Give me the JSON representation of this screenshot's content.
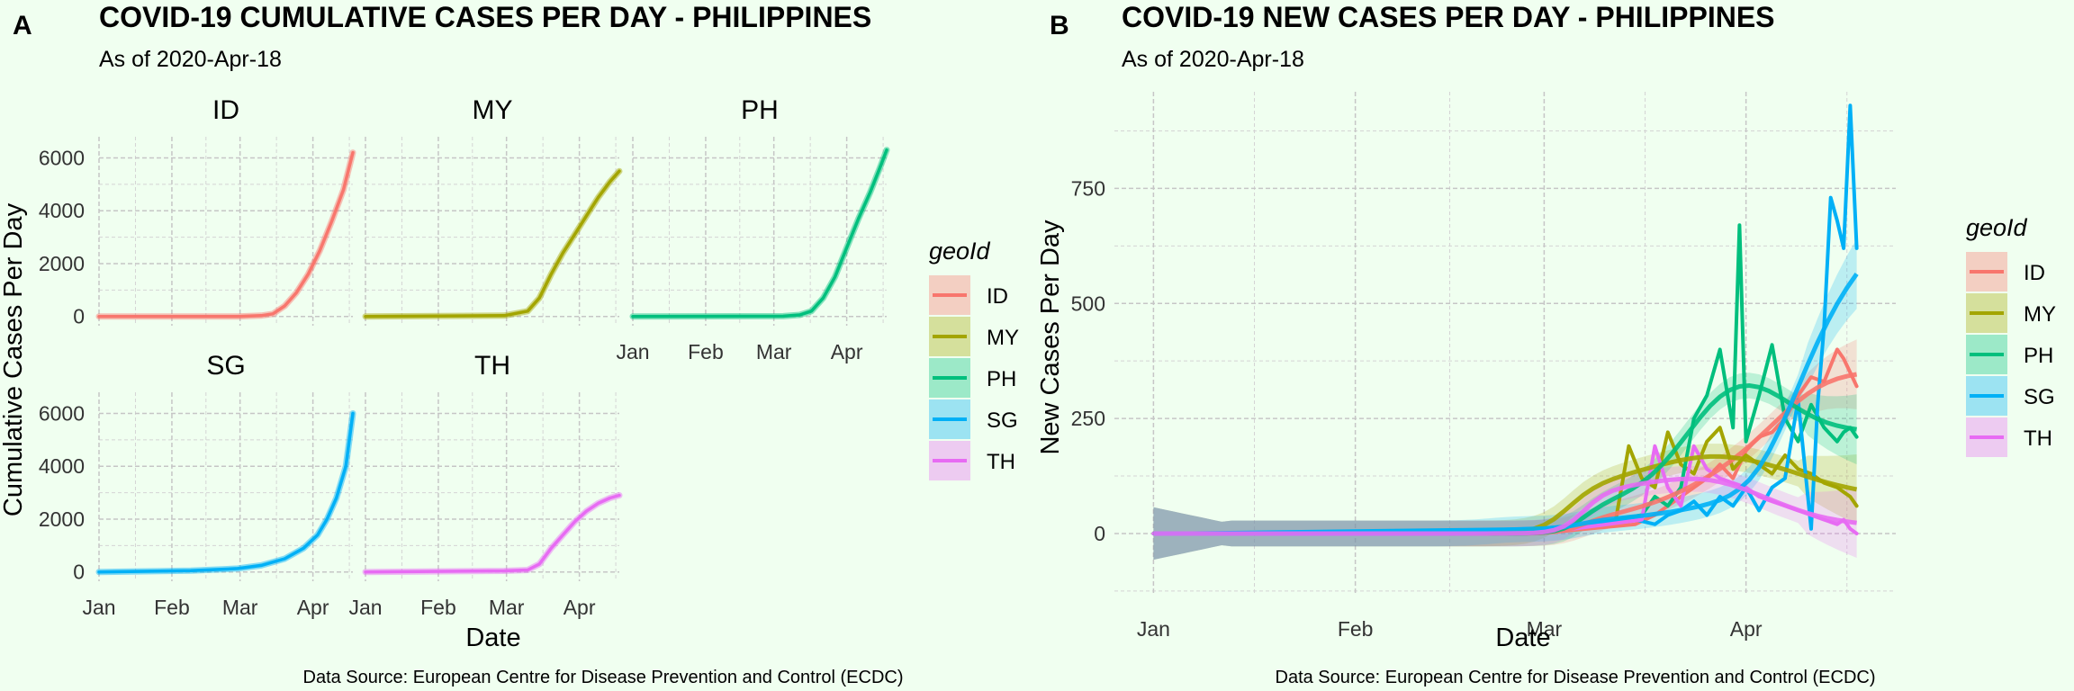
{
  "panel_a": {
    "tag": "A",
    "title": "COVID-19 CUMULATIVE CASES PER DAY - PHILIPPINES",
    "subtitle": "As of 2020-Apr-18",
    "source": "Data Source: European Centre for Disease Prevention and Control (ECDC)"
  },
  "panel_b": {
    "tag": "B",
    "title": "COVID-19 NEW CASES PER DAY - PHILIPPINES",
    "subtitle": "As of 2020-Apr-18",
    "source": "Data Source: European Centre for Disease Prevention and Control (ECDC)"
  },
  "colors": {
    "ID": "#f8766d",
    "MY": "#a3a500",
    "PH": "#00bf7d",
    "SG": "#00b0f6",
    "TH": "#e76bf3"
  },
  "chart_data": [
    {
      "type": "line",
      "facet": true,
      "xlabel": "Date",
      "ylabel": "Cumulative Cases Per Day",
      "x_ticks": [
        "Jan",
        "Feb",
        "Mar",
        "Apr"
      ],
      "x_tick_values": [
        1,
        32,
        61,
        92
      ],
      "xlim": [
        1,
        109
      ],
      "ylim": [
        -350,
        6800
      ],
      "y_ticks": [
        0,
        2000,
        4000,
        6000
      ],
      "legend": {
        "title": "geoId",
        "position": "right",
        "entries": [
          "ID",
          "MY",
          "PH",
          "SG",
          "TH"
        ]
      },
      "grid": true,
      "series": [
        {
          "name": "ID",
          "x": [
            1,
            60,
            70,
            75,
            80,
            85,
            90,
            95,
            100,
            105,
            109
          ],
          "y": [
            0,
            0,
            30,
            100,
            400,
            900,
            1600,
            2500,
            3600,
            4800,
            6200
          ]
        },
        {
          "name": "MY",
          "x": [
            1,
            60,
            70,
            75,
            80,
            85,
            90,
            95,
            100,
            105,
            109
          ],
          "y": [
            0,
            30,
            200,
            700,
            1600,
            2400,
            3100,
            3800,
            4500,
            5100,
            5500
          ]
        },
        {
          "name": "PH",
          "x": [
            1,
            65,
            72,
            77,
            82,
            87,
            92,
            97,
            102,
            106,
            109
          ],
          "y": [
            0,
            10,
            60,
            200,
            700,
            1500,
            2600,
            3700,
            4700,
            5600,
            6300
          ]
        },
        {
          "name": "SG",
          "x": [
            1,
            40,
            60,
            70,
            80,
            88,
            94,
            98,
            102,
            106,
            109
          ],
          "y": [
            0,
            50,
            130,
            250,
            500,
            900,
            1400,
            2000,
            2800,
            4000,
            6000
          ]
        },
        {
          "name": "TH",
          "x": [
            1,
            60,
            70,
            75,
            80,
            85,
            90,
            95,
            100,
            105,
            109
          ],
          "y": [
            0,
            40,
            75,
            300,
            900,
            1400,
            1900,
            2300,
            2600,
            2800,
            2900
          ]
        }
      ]
    },
    {
      "type": "line",
      "xlabel": "Date",
      "ylabel": "New Cases Per Day",
      "x_ticks": [
        "Jan",
        "Feb",
        "Mar",
        "Apr"
      ],
      "x_tick_values": [
        1,
        32,
        61,
        92
      ],
      "xlim": [
        -5,
        115
      ],
      "ylim": [
        -135,
        960
      ],
      "y_ticks": [
        0,
        250,
        500,
        750
      ],
      "legend": {
        "title": "geoId",
        "position": "right",
        "entries": [
          "ID",
          "MY",
          "PH",
          "SG",
          "TH"
        ]
      },
      "grid": true,
      "series": [
        {
          "name": "ID",
          "x": [
            1,
            60,
            75,
            78,
            80,
            82,
            84,
            86,
            88,
            90,
            92,
            94,
            96,
            98,
            100,
            102,
            104,
            106,
            107,
            108,
            109
          ],
          "y": [
            0,
            0,
            20,
            40,
            60,
            80,
            100,
            120,
            150,
            120,
            180,
            210,
            220,
            250,
            300,
            340,
            330,
            400,
            380,
            350,
            320
          ]
        },
        {
          "name": "MY",
          "x": [
            1,
            60,
            72,
            74,
            76,
            78,
            80,
            82,
            84,
            86,
            88,
            90,
            92,
            94,
            96,
            98,
            100,
            102,
            104,
            106,
            107,
            108,
            109
          ],
          "y": [
            0,
            0,
            30,
            190,
            120,
            100,
            220,
            150,
            130,
            200,
            230,
            140,
            170,
            150,
            130,
            170,
            140,
            130,
            110,
            100,
            90,
            80,
            60
          ]
        },
        {
          "name": "PH",
          "x": [
            1,
            60,
            76,
            78,
            80,
            82,
            84,
            86,
            88,
            90,
            91,
            92,
            94,
            96,
            98,
            100,
            102,
            104,
            106,
            107,
            108,
            109
          ],
          "y": [
            0,
            0,
            40,
            80,
            60,
            100,
            250,
            300,
            400,
            230,
            670,
            200,
            300,
            410,
            250,
            200,
            280,
            230,
            200,
            220,
            230,
            210
          ]
        },
        {
          "name": "SG",
          "x": [
            1,
            60,
            75,
            78,
            80,
            82,
            84,
            86,
            88,
            90,
            92,
            94,
            96,
            98,
            100,
            102,
            103,
            104,
            105,
            106,
            107,
            108,
            109
          ],
          "y": [
            0,
            10,
            30,
            20,
            40,
            50,
            70,
            40,
            80,
            60,
            100,
            50,
            100,
            120,
            290,
            10,
            280,
            450,
            730,
            680,
            620,
            930,
            620
          ]
        },
        {
          "name": "TH",
          "x": [
            1,
            60,
            76,
            78,
            80,
            82,
            84,
            86,
            88,
            90,
            92,
            94,
            96,
            98,
            100,
            102,
            104,
            106,
            107,
            108,
            109
          ],
          "y": [
            0,
            0,
            30,
            190,
            100,
            60,
            190,
            140,
            120,
            110,
            100,
            80,
            70,
            60,
            50,
            40,
            30,
            20,
            30,
            10,
            0
          ]
        }
      ]
    }
  ]
}
